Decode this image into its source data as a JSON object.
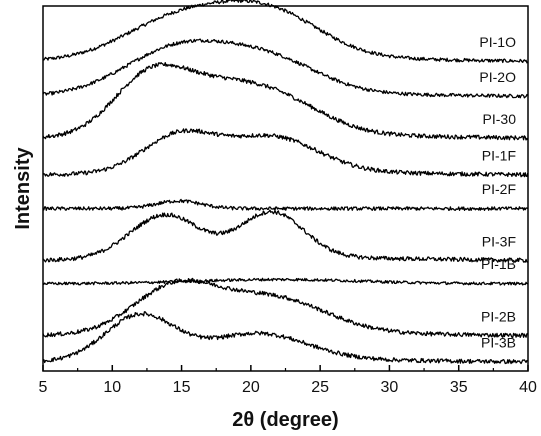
{
  "chart_data": {
    "type": "line",
    "xlabel": "2θ (degree)",
    "ylabel": "Intensity",
    "xlim": [
      5,
      40
    ],
    "x_ticks": [
      "5",
      "10",
      "15",
      "20",
      "25",
      "30",
      "35",
      "40"
    ],
    "y_ticks_shown": false,
    "grid": false,
    "series": [
      {
        "name": "PI-1O",
        "offset": 8.6,
        "peaks": [
          [
            13.5,
            0.55,
            3.5
          ],
          [
            18,
            1.0,
            4.5
          ],
          [
            22,
            0.72,
            3.5
          ]
        ],
        "background": 0.12,
        "noise": 0.05
      },
      {
        "name": "PI-2O",
        "offset": 7.6,
        "peaks": [
          [
            13,
            0.6,
            3.5
          ],
          [
            16,
            0.85,
            3.5
          ],
          [
            21.5,
            0.9,
            3.5
          ]
        ],
        "background": 0.1,
        "noise": 0.05
      },
      {
        "name": "PI-30",
        "offset": 6.4,
        "peaks": [
          [
            12.5,
            1.45,
            2.6
          ],
          [
            16.5,
            0.95,
            3.2
          ],
          [
            21.5,
            1.05,
            3.5
          ]
        ],
        "background": 0.12,
        "noise": 0.06
      },
      {
        "name": "PI-1F",
        "offset": 5.35,
        "peaks": [
          [
            14.8,
            1.05,
            2.6
          ],
          [
            21.5,
            1.0,
            3.3
          ]
        ],
        "background": 0.1,
        "noise": 0.06
      },
      {
        "name": "PI-2F",
        "offset": 4.4,
        "peaks": [
          [
            14.8,
            0.22,
            1.6
          ]
        ],
        "background": 0.0,
        "noise": 0.05
      },
      {
        "name": "PI-3F",
        "offset": 2.9,
        "peaks": [
          [
            13.8,
            1.25,
            2.5
          ],
          [
            21.5,
            1.3,
            2.3
          ]
        ],
        "background": 0.1,
        "noise": 0.06
      },
      {
        "name": "PI-1B",
        "offset": 2.25,
        "peaks": [
          [
            22,
            0.12,
            6
          ]
        ],
        "background": 0.0,
        "noise": 0.04
      },
      {
        "name": "PI-2B",
        "offset": 0.75,
        "peaks": [
          [
            14.5,
            1.3,
            3
          ],
          [
            21.5,
            1.0,
            3.8
          ]
        ],
        "background": 0.1,
        "noise": 0.06
      },
      {
        "name": "PI-3B",
        "offset": 0.0,
        "peaks": [
          [
            12,
            1.3,
            2.5
          ],
          [
            20.5,
            0.75,
            3.5
          ]
        ],
        "background": 0.08,
        "noise": 0.06
      }
    ]
  }
}
